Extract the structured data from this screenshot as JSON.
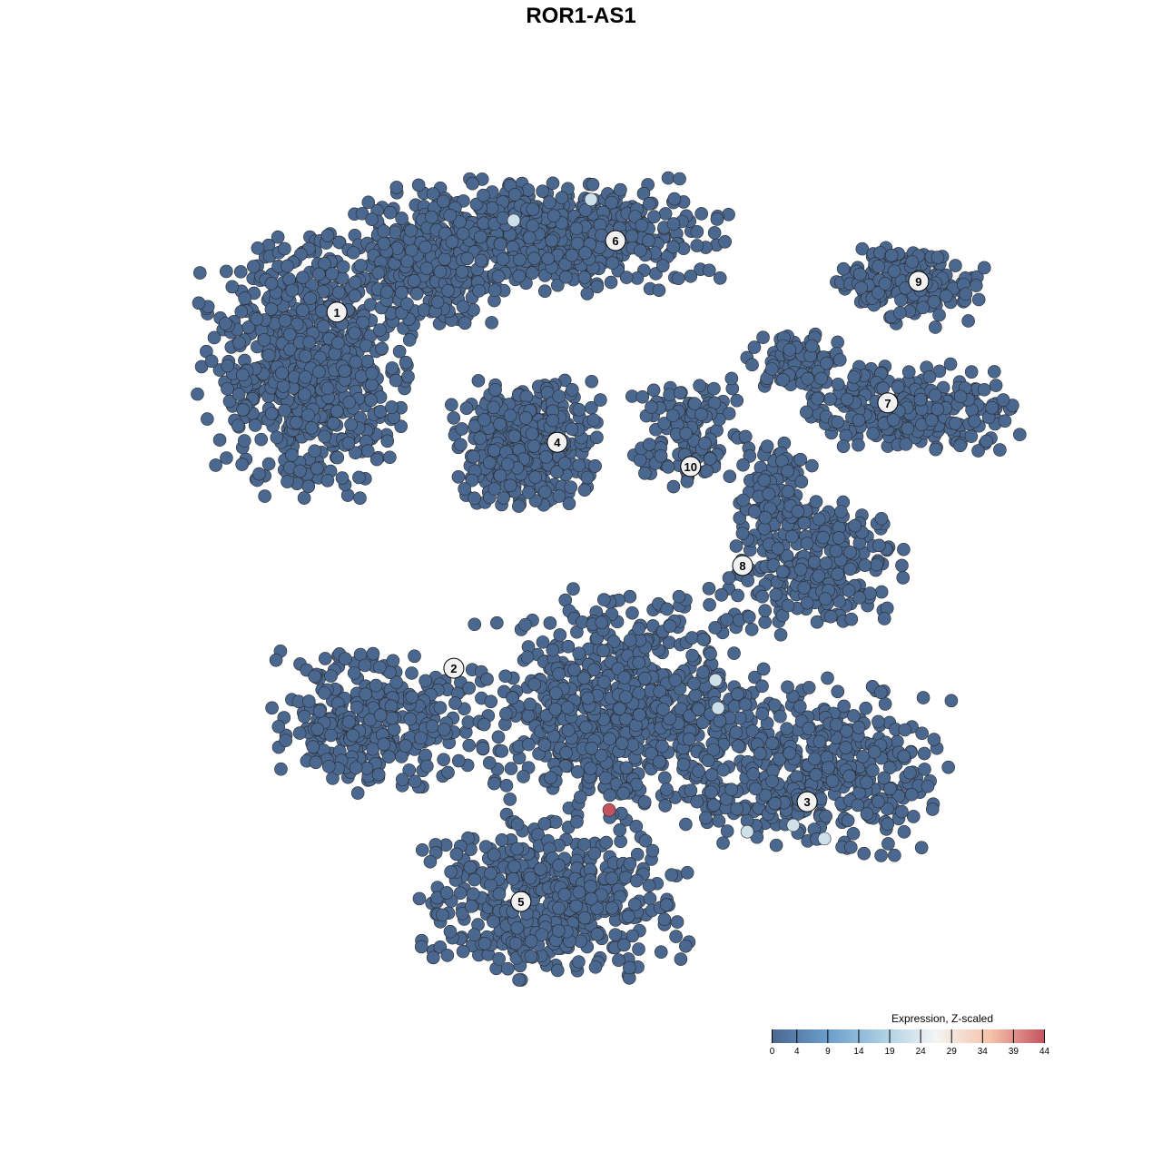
{
  "chart_data": {
    "type": "scatter",
    "title": "ROR1-AS1",
    "xlabel": "",
    "ylabel": "",
    "xlim": [
      -10,
      10
    ],
    "ylim": [
      -10,
      10
    ],
    "grid": false,
    "axes_visible": false,
    "point_fill_default_value": 0,
    "point_edge_color": "#2b2b2b",
    "clusters": [
      {
        "label": "1",
        "label_pos": [
          -6.32,
          6.48
        ],
        "blobs": [
          {
            "center": [
              -6.99,
              5.13
            ],
            "spread": [
              1.61,
              1.99
            ],
            "n": 720
          },
          {
            "center": [
              -4.19,
              7.45
            ],
            "spread": [
              1.2,
              0.8
            ],
            "n": 260
          }
        ]
      },
      {
        "label": "6",
        "label_pos": [
          0.28,
          8.22
        ],
        "blobs": [
          {
            "center": [
              -1.4,
              8.31
            ],
            "spread": [
              2.8,
              0.88
            ],
            "n": 620
          }
        ]
      },
      {
        "label": "4",
        "label_pos": [
          -1.1,
          3.31
        ],
        "blobs": [
          {
            "center": [
              -1.83,
              3.26
            ],
            "spread": [
              1.08,
              0.99
            ],
            "n": 420
          }
        ]
      },
      {
        "label": "9",
        "label_pos": [
          7.46,
          7.23
        ],
        "blobs": [
          {
            "center": [
              7.1,
              7.2
            ],
            "spread": [
              1.18,
              0.66
            ],
            "n": 160
          }
        ]
      },
      {
        "label": "7",
        "label_pos": [
          6.73,
          4.27
        ],
        "blobs": [
          {
            "center": [
              7.2,
              4.13
            ],
            "spread": [
              1.72,
              0.66
            ],
            "n": 260
          },
          {
            "center": [
              4.62,
              5.24
            ],
            "spread": [
              0.8,
              0.5
            ],
            "n": 90
          }
        ]
      },
      {
        "label": "10",
        "label_pos": [
          2.06,
          2.72
        ],
        "blobs": [
          {
            "center": [
              2.04,
              3.54
            ],
            "spread": [
              0.86,
              0.88
            ],
            "n": 120
          }
        ]
      },
      {
        "label": "8",
        "label_pos": [
          3.29,
          0.31
        ],
        "blobs": [
          {
            "center": [
              5.05,
              0.37
            ],
            "spread": [
              1.29,
              1.1
            ],
            "n": 260
          },
          {
            "center": [
              3.98,
              2.14
            ],
            "spread": [
              0.6,
              0.8
            ],
            "n": 90
          }
        ]
      },
      {
        "label": "2",
        "label_pos": [
          -3.55,
          -2.19
        ],
        "blobs": [
          {
            "center": [
              -5.48,
              -3.43
            ],
            "spread": [
              1.5,
              1.1
            ],
            "n": 320
          },
          {
            "center": [
              0.32,
              -3.16
            ],
            "spread": [
              2.15,
              1.77
            ],
            "n": 720
          }
        ]
      },
      {
        "label": "3",
        "label_pos": [
          4.82,
          -5.44
        ],
        "blobs": [
          {
            "center": [
              5.05,
              -4.61
            ],
            "spread": [
              1.94,
              1.33
            ],
            "n": 420
          }
        ]
      },
      {
        "label": "5",
        "label_pos": [
          -1.96,
          -7.87
        ],
        "blobs": [
          {
            "center": [
              -1.18,
              -7.86
            ],
            "spread": [
              1.94,
              1.22
            ],
            "n": 520
          }
        ]
      }
    ],
    "highlighted_points": [
      {
        "x": -0.3,
        "y": 9.22,
        "value": 22
      },
      {
        "x": -2.13,
        "y": 8.71,
        "value": 22
      },
      {
        "x": 2.65,
        "y": -2.48,
        "value": 22
      },
      {
        "x": 2.71,
        "y": -3.16,
        "value": 22
      },
      {
        "x": 3.4,
        "y": -6.17,
        "value": 22
      },
      {
        "x": 4.49,
        "y": -6.01,
        "value": 22
      },
      {
        "x": 5.23,
        "y": -6.34,
        "value": 22
      },
      {
        "x": 0.13,
        "y": -5.64,
        "value": 44
      }
    ],
    "colorbar": {
      "title": "Expression, Z-scaled",
      "range": [
        0,
        44
      ],
      "ticks": [
        "0",
        "4",
        "9",
        "14",
        "19",
        "24",
        "29",
        "34",
        "39",
        "44"
      ],
      "tick_values": [
        0,
        4,
        9,
        14,
        19,
        24,
        29,
        34,
        39,
        44
      ],
      "colors": [
        "#4a6790",
        "#6a9ccb",
        "#a7cde2",
        "#f4f4f4",
        "#f6c3a9",
        "#c45260"
      ],
      "legend_position": "bottom-right"
    }
  }
}
